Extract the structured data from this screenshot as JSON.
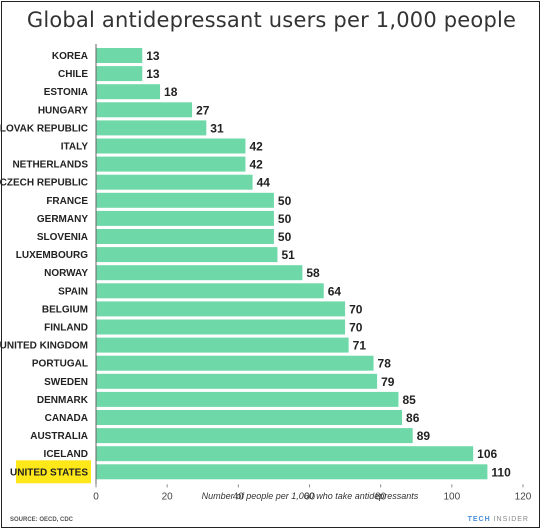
{
  "title": "Global antidepressant users per 1,000 people",
  "source": "SOURCE: OECD, CDC",
  "brand": {
    "part1": "TECH",
    "part2": "INSIDER"
  },
  "colors": {
    "bar": "#6fd8a8",
    "highlight": "#ffe81a",
    "text": "#222222"
  },
  "chart_data": {
    "type": "bar",
    "orientation": "horizontal",
    "title": "Global antidepressant users per 1,000 people",
    "xlabel": "Number of people per 1,000 who take antidepressants",
    "ylabel": "",
    "xlim": [
      0,
      120
    ],
    "xticks": [
      "0",
      "20",
      "40",
      "60",
      "80",
      "100",
      "120"
    ],
    "grid": false,
    "highlighted_category": "UNITED STATES",
    "categories": [
      "KOREA",
      "CHILE",
      "ESTONIA",
      "HUNGARY",
      "SLOVAK REPUBLIC",
      "ITALY",
      "NETHERLANDS",
      "CZECH REPUBLIC",
      "FRANCE",
      "GERMANY",
      "SLOVENIA",
      "LUXEMBOURG",
      "NORWAY",
      "SPAIN",
      "BELGIUM",
      "FINLAND",
      "UNITED KINGDOM",
      "PORTUGAL",
      "SWEDEN",
      "DENMARK",
      "CANADA",
      "AUSTRALIA",
      "ICELAND",
      "UNITED STATES"
    ],
    "values": [
      13,
      13,
      18,
      27,
      31,
      42,
      42,
      44,
      50,
      50,
      50,
      51,
      58,
      64,
      70,
      70,
      71,
      78,
      79,
      85,
      86,
      89,
      106,
      110
    ]
  }
}
